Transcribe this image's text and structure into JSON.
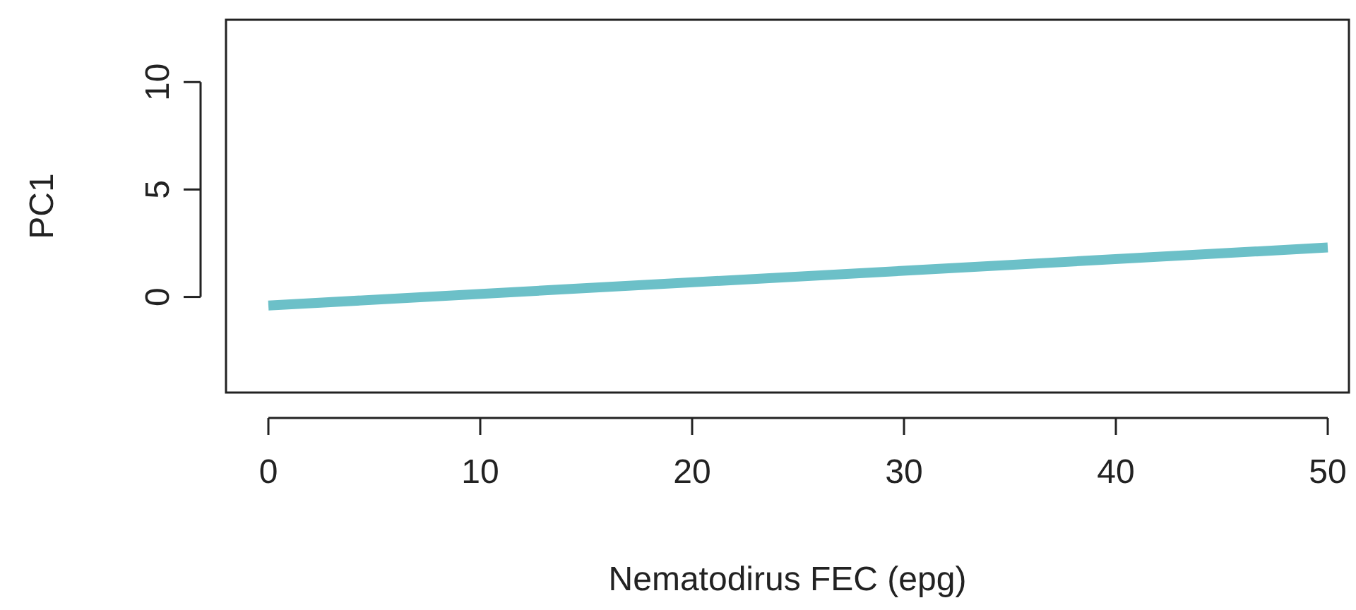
{
  "chart_data": {
    "type": "line",
    "xlabel": "Nematodirus FEC (epg)",
    "ylabel": "PC1",
    "x": [
      0,
      50
    ],
    "series": [
      {
        "color": "#6cc0c8",
        "values": [
          -0.4,
          2.3
        ]
      }
    ],
    "xlim": [
      -2,
      51
    ],
    "ylim": [
      -4.45,
      12.9
    ],
    "xticks": [
      0,
      10,
      20,
      30,
      40,
      50
    ],
    "yticks": [
      0,
      5,
      10
    ],
    "grid": false,
    "line_style": "solid"
  }
}
